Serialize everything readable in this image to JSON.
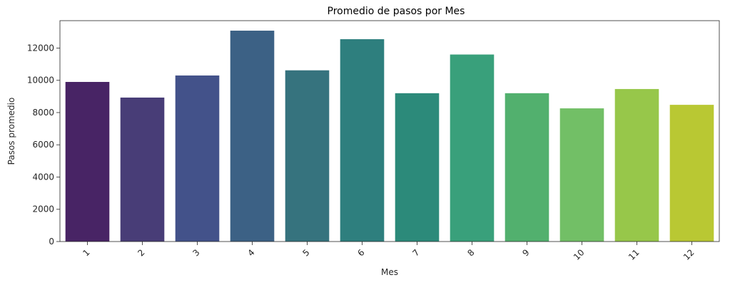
{
  "chart_data": {
    "type": "bar",
    "title": "Promedio de pasos por Mes",
    "xlabel": "Mes",
    "ylabel": "Pasos promedio",
    "categories": [
      "1",
      "2",
      "3",
      "4",
      "5",
      "6",
      "7",
      "8",
      "9",
      "10",
      "11",
      "12"
    ],
    "values": [
      9900,
      8930,
      10300,
      13080,
      10620,
      12550,
      9200,
      11600,
      9200,
      8260,
      9460,
      8480
    ],
    "ylim": [
      0,
      13700
    ],
    "yticks": [
      0,
      2000,
      4000,
      6000,
      8000,
      10000,
      12000
    ],
    "yticks_labels": [
      "0",
      "2000",
      "4000",
      "6000",
      "8000",
      "10000",
      "12000"
    ],
    "grid": false,
    "legend": "none",
    "colors": [
      "#482465",
      "#483d77",
      "#43528a",
      "#3c6185",
      "#36737e",
      "#2e7f7e",
      "#2c8a7a",
      "#39a07b",
      "#52b06e",
      "#72bf66",
      "#97c74a",
      "#b9c833"
    ]
  }
}
